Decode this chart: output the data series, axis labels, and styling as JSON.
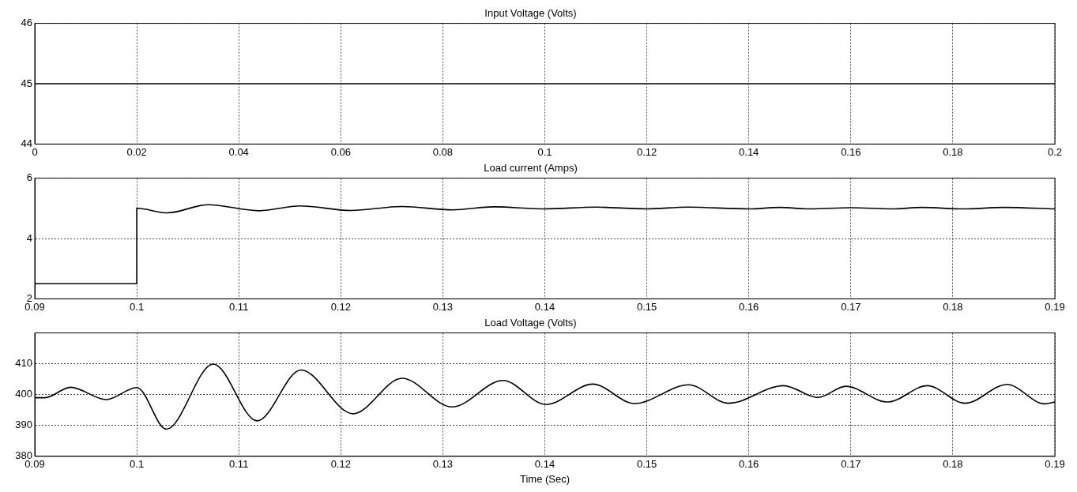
{
  "chart_data": [
    {
      "type": "line",
      "title": "Input Voltage (Volts)",
      "x": [
        0,
        0.2
      ],
      "values": [
        45,
        45
      ],
      "color": "#000000",
      "xlim": [
        0,
        0.2
      ],
      "xticks": [
        0,
        0.02,
        0.04,
        0.06,
        0.08,
        0.1,
        0.12,
        0.14,
        0.16,
        0.18,
        0.2
      ],
      "ylim": [
        44,
        46
      ],
      "yticks": [
        44,
        45,
        46
      ],
      "grid": true
    },
    {
      "type": "line",
      "title": "Load current (Amps)",
      "x": [
        0.09,
        0.1,
        0.1,
        0.103,
        0.107,
        0.112,
        0.116,
        0.121,
        0.126,
        0.131,
        0.135,
        0.14,
        0.145,
        0.15,
        0.154,
        0.16,
        0.163,
        0.166,
        0.17,
        0.174,
        0.177,
        0.181,
        0.185,
        0.19
      ],
      "values": [
        2.5,
        2.5,
        5.0,
        4.85,
        5.12,
        4.92,
        5.08,
        4.93,
        5.06,
        4.95,
        5.05,
        4.98,
        5.04,
        4.98,
        5.04,
        4.98,
        5.03,
        4.98,
        5.02,
        4.98,
        5.03,
        4.98,
        5.03,
        4.98
      ],
      "color": "#000000",
      "xlim": [
        0.09,
        0.19
      ],
      "xticks": [
        0.09,
        0.1,
        0.11,
        0.12,
        0.13,
        0.14,
        0.15,
        0.16,
        0.17,
        0.18,
        0.19
      ],
      "ylim": [
        2,
        6
      ],
      "yticks": [
        2,
        4,
        6
      ],
      "grid": true
    },
    {
      "type": "line",
      "title": "Load Voltage (Volts)",
      "xlabel": "Time (Sec)",
      "x": [
        0.09,
        0.091,
        0.0935,
        0.097,
        0.1,
        0.1029,
        0.1075,
        0.1118,
        0.1161,
        0.1212,
        0.126,
        0.1309,
        0.1359,
        0.1401,
        0.1447,
        0.1488,
        0.1541,
        0.158,
        0.1634,
        0.1668,
        0.1695,
        0.1736,
        0.1775,
        0.1812,
        0.1853,
        0.189,
        0.19
      ],
      "values": [
        399,
        399,
        402.4,
        398.4,
        402.3,
        388.8,
        409.9,
        391.5,
        408,
        393.8,
        405.3,
        396,
        404.6,
        396.8,
        403.4,
        397.1,
        403.2,
        397.2,
        402.9,
        399.1,
        402.7,
        397.6,
        402.9,
        397.2,
        403.3,
        397,
        397.6
      ],
      "color": "#000000",
      "xlim": [
        0.09,
        0.19
      ],
      "xticks": [
        0.09,
        0.1,
        0.11,
        0.12,
        0.13,
        0.14,
        0.15,
        0.16,
        0.17,
        0.18,
        0.19
      ],
      "ylim": [
        380,
        420
      ],
      "yticks": [
        380,
        390,
        400,
        410
      ],
      "grid": true
    }
  ]
}
